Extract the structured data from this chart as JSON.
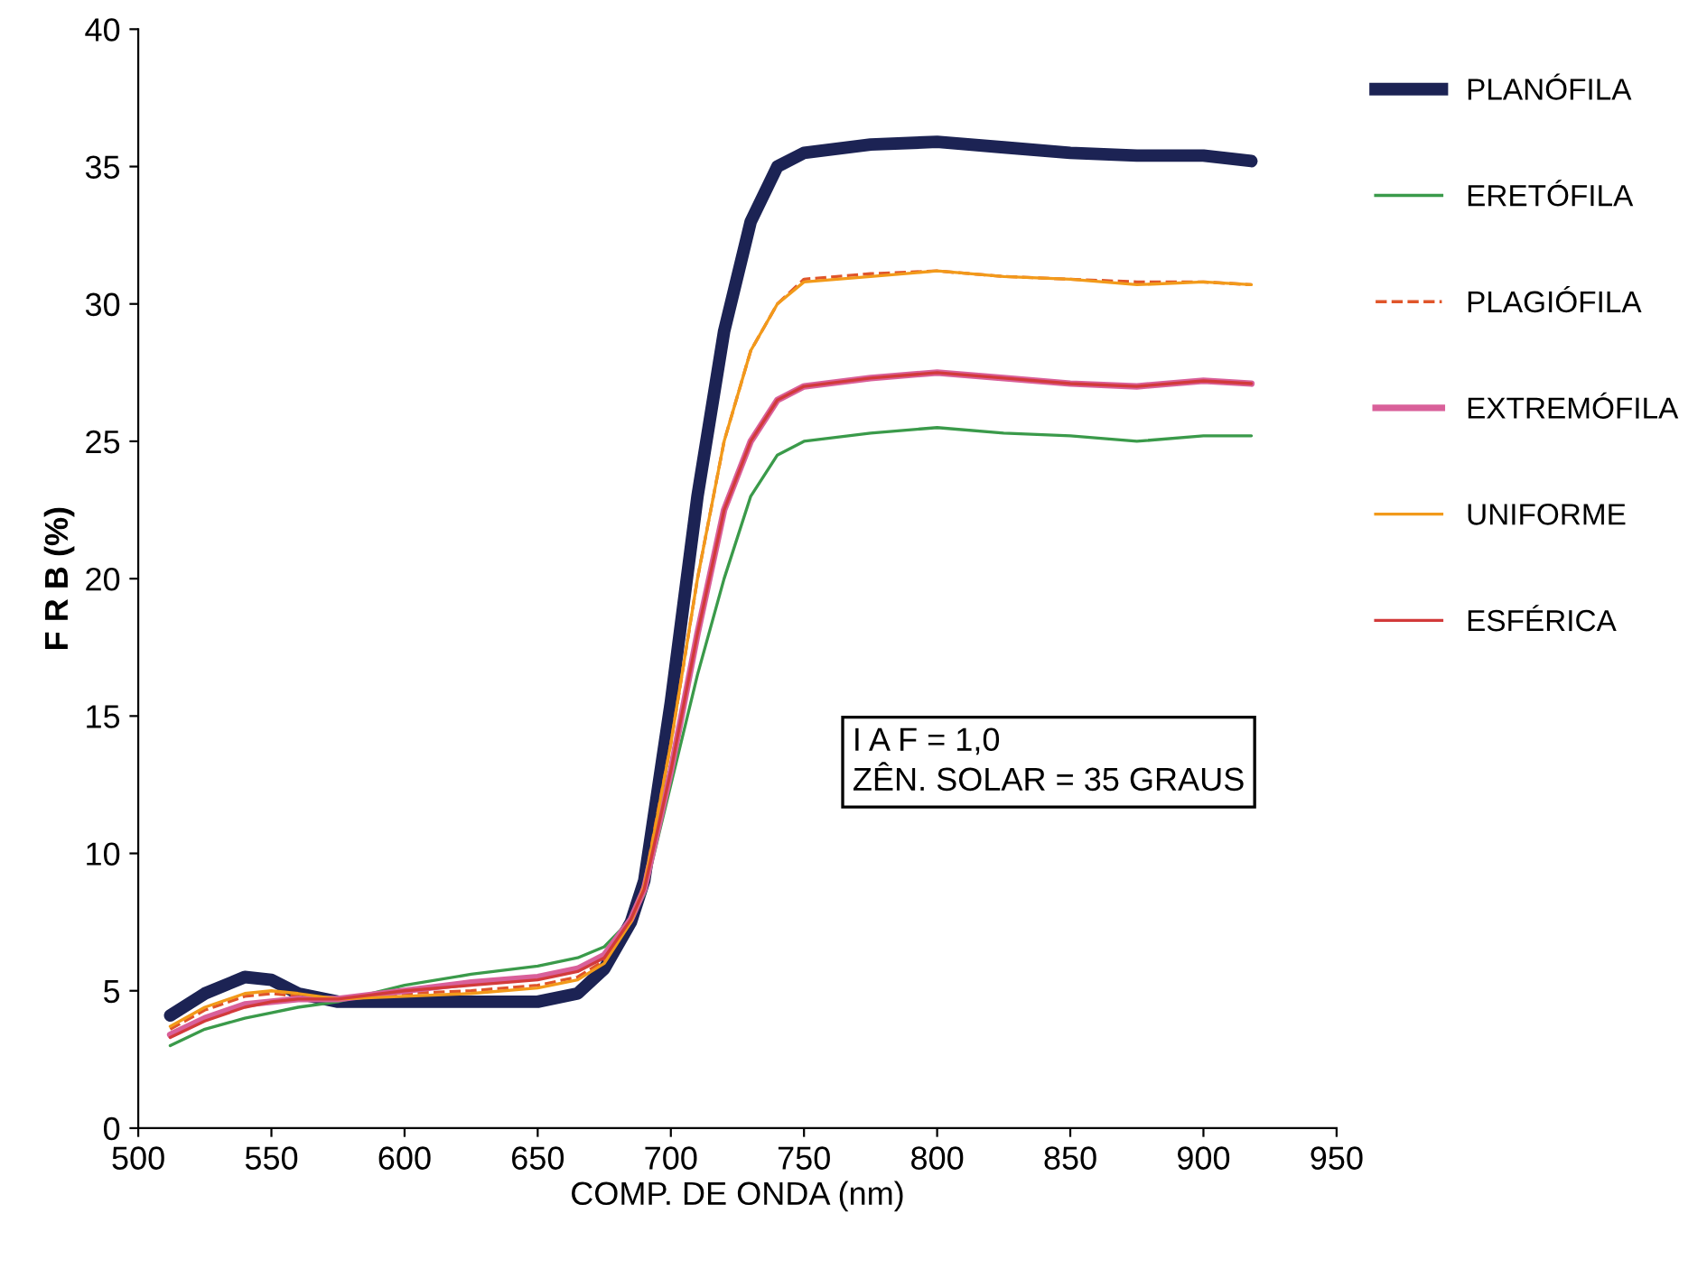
{
  "chart_data": {
    "type": "line",
    "xlabel": "COMP. DE ONDA (nm)",
    "ylabel": "F R B (%)",
    "x": [
      512,
      525,
      540,
      550,
      560,
      575,
      600,
      625,
      650,
      665,
      675,
      685,
      690,
      700,
      710,
      720,
      730,
      740,
      750,
      775,
      800,
      825,
      850,
      875,
      900,
      918
    ],
    "series": [
      {
        "name": "PLANÓFILA",
        "color": "#1c2354",
        "values": [
          4.1,
          4.9,
          5.5,
          5.4,
          4.9,
          4.6,
          4.6,
          4.6,
          4.6,
          4.9,
          5.8,
          7.5,
          9.0,
          15.5,
          23,
          29,
          33,
          35,
          35.5,
          35.8,
          35.9,
          35.7,
          35.5,
          35.4,
          35.4,
          35.2
        ]
      },
      {
        "name": "ERETÓFILA",
        "color": "#3a9a4a",
        "values": [
          3.0,
          3.6,
          4.0,
          4.2,
          4.4,
          4.6,
          5.2,
          5.6,
          5.9,
          6.2,
          6.6,
          7.6,
          8.5,
          12.5,
          16.5,
          20,
          23,
          24.5,
          25.0,
          25.3,
          25.5,
          25.3,
          25.2,
          25.0,
          25.2,
          25.2
        ]
      },
      {
        "name": "PLAGIÓFILA",
        "color": "#e0552a",
        "line_style": "dashed",
        "values": [
          3.6,
          4.3,
          4.8,
          4.9,
          4.8,
          4.7,
          4.9,
          5.0,
          5.2,
          5.5,
          6.1,
          7.6,
          8.9,
          14,
          20,
          25,
          28.3,
          30,
          30.9,
          31.1,
          31.2,
          31.0,
          30.9,
          30.8,
          30.8,
          30.7
        ]
      },
      {
        "name": "EXTREMÓFILA",
        "color": "#d9609a",
        "values": [
          3.4,
          4.0,
          4.5,
          4.6,
          4.7,
          4.7,
          5.0,
          5.3,
          5.5,
          5.8,
          6.3,
          7.6,
          8.7,
          13,
          18,
          22.5,
          25,
          26.5,
          27.0,
          27.3,
          27.5,
          27.3,
          27.1,
          27.0,
          27.2,
          27.1
        ]
      },
      {
        "name": "UNIFORME",
        "color": "#f29a1a",
        "values": [
          3.7,
          4.4,
          4.9,
          5.0,
          4.9,
          4.7,
          4.8,
          4.9,
          5.1,
          5.4,
          6.0,
          7.5,
          8.8,
          14,
          20,
          25,
          28.3,
          30,
          30.8,
          31.0,
          31.2,
          31.0,
          30.9,
          30.7,
          30.8,
          30.7
        ]
      },
      {
        "name": "ESFÉRICA",
        "color": "#d23a3a",
        "values": [
          3.3,
          3.9,
          4.4,
          4.6,
          4.7,
          4.7,
          5.0,
          5.2,
          5.4,
          5.7,
          6.2,
          7.6,
          8.7,
          13,
          18,
          22.5,
          25,
          26.5,
          27.0,
          27.3,
          27.5,
          27.3,
          27.1,
          27.0,
          27.2,
          27.1
        ]
      }
    ],
    "xlim": [
      500,
      950
    ],
    "xticks": [
      500,
      550,
      600,
      650,
      700,
      750,
      800,
      850,
      900,
      950
    ],
    "ylim": [
      0,
      40
    ],
    "yticks": [
      0,
      5,
      10,
      15,
      20,
      25,
      30,
      35,
      40
    ],
    "grid": false,
    "legend": "right",
    "marker": "none",
    "annotations": [
      "I A F = 1,0",
      "ZÊN. SOLAR = 35 GRAUS"
    ]
  }
}
